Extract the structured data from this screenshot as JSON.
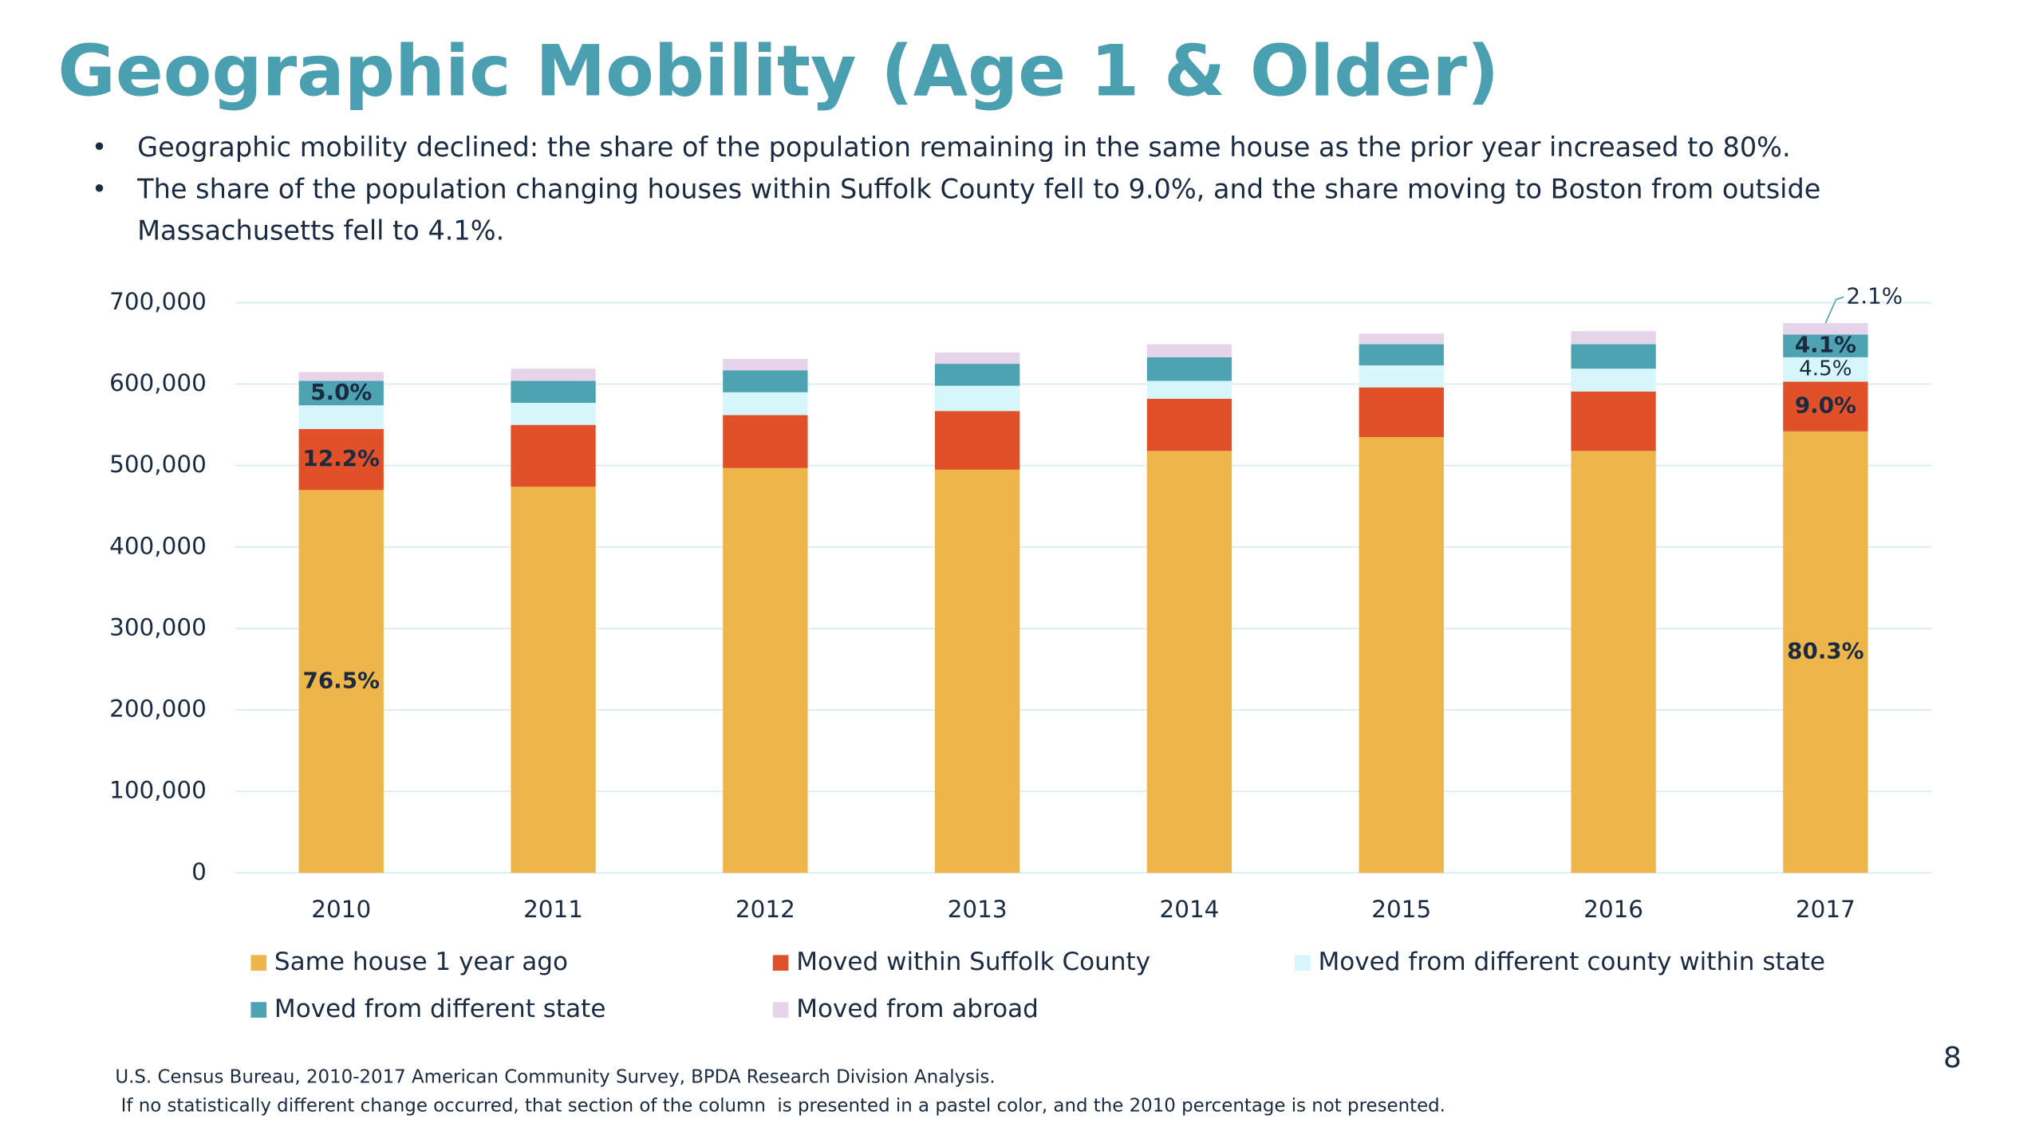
{
  "chart_data": {
    "type": "stacked_bar",
    "title": "Geographic Mobility (Age 1 & Older)",
    "categories": [
      "2010",
      "2011",
      "2012",
      "2013",
      "2014",
      "2015",
      "2016",
      "2017"
    ],
    "series": [
      {
        "name": "Same house 1 year ago",
        "color": "#eeb54a",
        "values": [
          470000,
          474000,
          497000,
          495000,
          518000,
          535000,
          518000,
          542000
        ],
        "percent_labels": [
          "76.5%",
          null,
          null,
          null,
          null,
          null,
          null,
          "80.3%"
        ]
      },
      {
        "name": "Moved within Suffolk County",
        "color": "#e0512a",
        "values": [
          75000,
          76000,
          65000,
          72000,
          64000,
          61000,
          73000,
          61000
        ],
        "percent_labels": [
          "12.2%",
          null,
          null,
          null,
          null,
          null,
          null,
          "9.0%"
        ]
      },
      {
        "name": "Moved from different county within state",
        "color": "#d6f6fb",
        "values": [
          29000,
          27000,
          28000,
          31000,
          22000,
          27000,
          28000,
          30000
        ],
        "percent_labels": [
          null,
          null,
          null,
          null,
          null,
          null,
          null,
          "4.5%"
        ]
      },
      {
        "name": "Moved from different state",
        "color": "#4ea3b3",
        "values": [
          30000,
          27000,
          27000,
          27000,
          29000,
          26000,
          30000,
          28000
        ],
        "percent_labels": [
          "5.0%",
          null,
          null,
          null,
          null,
          null,
          null,
          "4.1%"
        ]
      },
      {
        "name": "Moved from abroad",
        "color": "#e6d5ea",
        "values": [
          11000,
          15000,
          14000,
          14000,
          16000,
          13000,
          16000,
          14000
        ],
        "percent_labels": [
          null,
          null,
          null,
          null,
          null,
          null,
          null,
          "2.1%"
        ]
      }
    ],
    "ylim": [
      0,
      700000
    ],
    "yticks": [
      0,
      {
        "value": 100000,
        "label": "100,000"
      },
      {
        "value": 200000,
        "label": "200,000"
      },
      {
        "value": 300000,
        "label": "300,000"
      },
      {
        "value": 400000,
        "label": "400,000"
      },
      {
        "value": 500000,
        "label": "500,000"
      },
      {
        "value": 600000,
        "label": "600,000"
      },
      {
        "value": 700000,
        "label": "700,000"
      }
    ],
    "grid": true
  },
  "bullets": [
    [
      "Geographic mobility declined: the share of the population remaining in the same house as the prior year increased to 80%."
    ],
    [
      "The share of the population changing houses within Suffolk County fell to 9.0%, and the share moving to Boston from outside",
      "Massachusetts fell to 4.1%."
    ]
  ],
  "notes": [
    "U.S. Census Bureau, 2010-2017 American Community Survey, BPDA Research Division Analysis.",
    " If no statistically different change occurred, that section of the column  is presented in a pastel color, and the 2010 percentage is not presented."
  ],
  "page_number": "8"
}
